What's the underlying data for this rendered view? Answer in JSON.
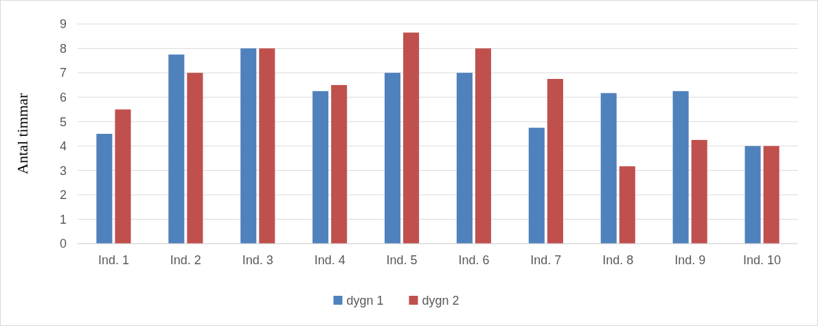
{
  "chart_data": {
    "type": "bar",
    "ylabel": "Antal timmar",
    "categories": [
      "Ind. 1",
      "Ind. 2",
      "Ind. 3",
      "Ind. 4",
      "Ind. 5",
      "Ind. 6",
      "Ind. 7",
      "Ind. 8",
      "Ind. 9",
      "Ind. 10"
    ],
    "series": [
      {
        "name": "dygn 1",
        "color": "#4f81bd",
        "values": [
          4.5,
          7.75,
          8,
          6.25,
          7,
          7,
          4.75,
          6.17,
          6.25,
          4
        ]
      },
      {
        "name": "dygn 2",
        "color": "#c0504d",
        "values": [
          5.5,
          7,
          8,
          6.5,
          8.65,
          8,
          6.75,
          3.17,
          4.25,
          4
        ]
      }
    ],
    "ylim": [
      0,
      9
    ],
    "yticks": [
      0,
      1,
      2,
      3,
      4,
      5,
      6,
      7,
      8,
      9
    ],
    "grid": "y",
    "legend": "bottom"
  }
}
